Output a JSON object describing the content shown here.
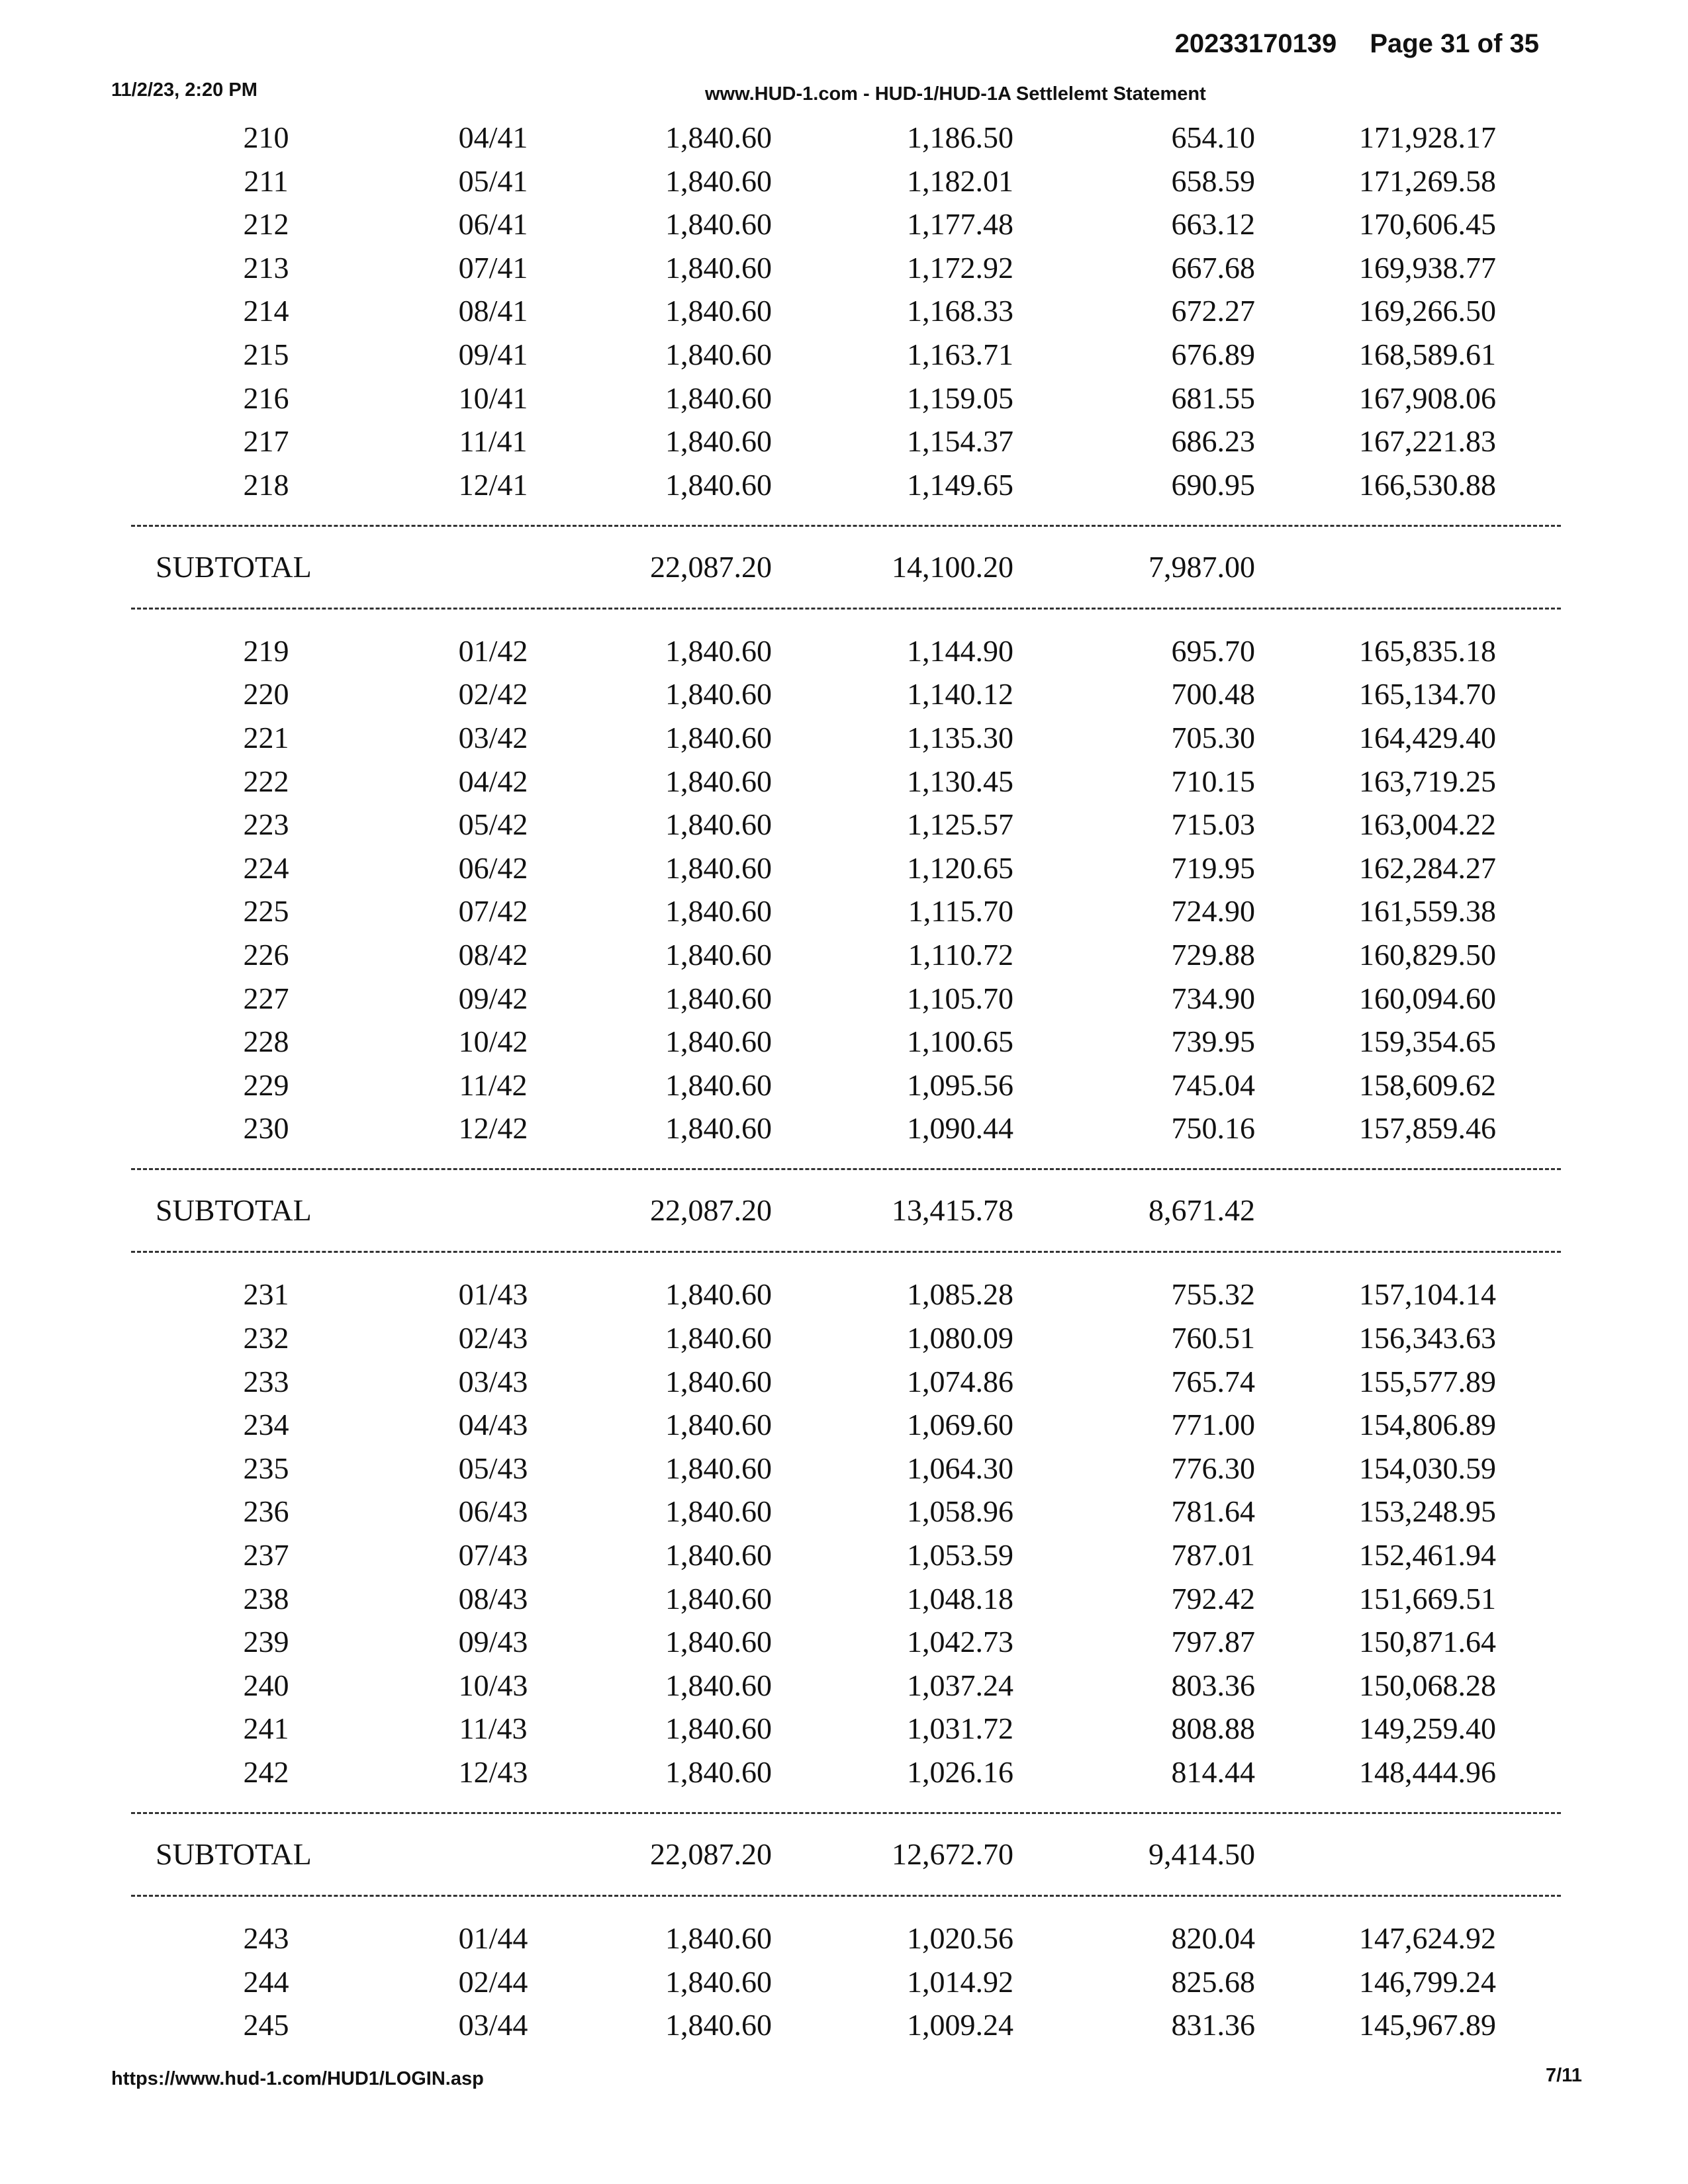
{
  "header": {
    "doc_number": "20233170139",
    "page": "Page 31 of 35",
    "datetime": "11/2/23, 2:20 PM",
    "title": "www.HUD-1.com - HUD-1/HUD-1A Settlelemt Statement"
  },
  "footer": {
    "url": "https://www.hud-1.com/HUD1/LOGIN.asp",
    "page": "7/11"
  },
  "sections": [
    {
      "rows": [
        [
          "210",
          "04/41",
          "1,840.60",
          "1,186.50",
          "654.10",
          "171,928.17"
        ],
        [
          "211",
          "05/41",
          "1,840.60",
          "1,182.01",
          "658.59",
          "171,269.58"
        ],
        [
          "212",
          "06/41",
          "1,840.60",
          "1,177.48",
          "663.12",
          "170,606.45"
        ],
        [
          "213",
          "07/41",
          "1,840.60",
          "1,172.92",
          "667.68",
          "169,938.77"
        ],
        [
          "214",
          "08/41",
          "1,840.60",
          "1,168.33",
          "672.27",
          "169,266.50"
        ],
        [
          "215",
          "09/41",
          "1,840.60",
          "1,163.71",
          "676.89",
          "168,589.61"
        ],
        [
          "216",
          "10/41",
          "1,840.60",
          "1,159.05",
          "681.55",
          "167,908.06"
        ],
        [
          "217",
          "11/41",
          "1,840.60",
          "1,154.37",
          "686.23",
          "167,221.83"
        ],
        [
          "218",
          "12/41",
          "1,840.60",
          "1,149.65",
          "690.95",
          "166,530.88"
        ]
      ],
      "subtotal": {
        "label": "SUBTOTAL",
        "payment": "22,087.20",
        "interest": "14,100.20",
        "principal": "7,987.00"
      }
    },
    {
      "rows": [
        [
          "219",
          "01/42",
          "1,840.60",
          "1,144.90",
          "695.70",
          "165,835.18"
        ],
        [
          "220",
          "02/42",
          "1,840.60",
          "1,140.12",
          "700.48",
          "165,134.70"
        ],
        [
          "221",
          "03/42",
          "1,840.60",
          "1,135.30",
          "705.30",
          "164,429.40"
        ],
        [
          "222",
          "04/42",
          "1,840.60",
          "1,130.45",
          "710.15",
          "163,719.25"
        ],
        [
          "223",
          "05/42",
          "1,840.60",
          "1,125.57",
          "715.03",
          "163,004.22"
        ],
        [
          "224",
          "06/42",
          "1,840.60",
          "1,120.65",
          "719.95",
          "162,284.27"
        ],
        [
          "225",
          "07/42",
          "1,840.60",
          "1,115.70",
          "724.90",
          "161,559.38"
        ],
        [
          "226",
          "08/42",
          "1,840.60",
          "1,110.72",
          "729.88",
          "160,829.50"
        ],
        [
          "227",
          "09/42",
          "1,840.60",
          "1,105.70",
          "734.90",
          "160,094.60"
        ],
        [
          "228",
          "10/42",
          "1,840.60",
          "1,100.65",
          "739.95",
          "159,354.65"
        ],
        [
          "229",
          "11/42",
          "1,840.60",
          "1,095.56",
          "745.04",
          "158,609.62"
        ],
        [
          "230",
          "12/42",
          "1,840.60",
          "1,090.44",
          "750.16",
          "157,859.46"
        ]
      ],
      "subtotal": {
        "label": "SUBTOTAL",
        "payment": "22,087.20",
        "interest": "13,415.78",
        "principal": "8,671.42"
      }
    },
    {
      "rows": [
        [
          "231",
          "01/43",
          "1,840.60",
          "1,085.28",
          "755.32",
          "157,104.14"
        ],
        [
          "232",
          "02/43",
          "1,840.60",
          "1,080.09",
          "760.51",
          "156,343.63"
        ],
        [
          "233",
          "03/43",
          "1,840.60",
          "1,074.86",
          "765.74",
          "155,577.89"
        ],
        [
          "234",
          "04/43",
          "1,840.60",
          "1,069.60",
          "771.00",
          "154,806.89"
        ],
        [
          "235",
          "05/43",
          "1,840.60",
          "1,064.30",
          "776.30",
          "154,030.59"
        ],
        [
          "236",
          "06/43",
          "1,840.60",
          "1,058.96",
          "781.64",
          "153,248.95"
        ],
        [
          "237",
          "07/43",
          "1,840.60",
          "1,053.59",
          "787.01",
          "152,461.94"
        ],
        [
          "238",
          "08/43",
          "1,840.60",
          "1,048.18",
          "792.42",
          "151,669.51"
        ],
        [
          "239",
          "09/43",
          "1,840.60",
          "1,042.73",
          "797.87",
          "150,871.64"
        ],
        [
          "240",
          "10/43",
          "1,840.60",
          "1,037.24",
          "803.36",
          "150,068.28"
        ],
        [
          "241",
          "11/43",
          "1,840.60",
          "1,031.72",
          "808.88",
          "149,259.40"
        ],
        [
          "242",
          "12/43",
          "1,840.60",
          "1,026.16",
          "814.44",
          "148,444.96"
        ]
      ],
      "subtotal": {
        "label": "SUBTOTAL",
        "payment": "22,087.20",
        "interest": "12,672.70",
        "principal": "9,414.50"
      }
    },
    {
      "rows": [
        [
          "243",
          "01/44",
          "1,840.60",
          "1,020.56",
          "820.04",
          "147,624.92"
        ],
        [
          "244",
          "02/44",
          "1,840.60",
          "1,014.92",
          "825.68",
          "146,799.24"
        ],
        [
          "245",
          "03/44",
          "1,840.60",
          "1,009.24",
          "831.36",
          "145,967.89"
        ]
      ]
    }
  ]
}
